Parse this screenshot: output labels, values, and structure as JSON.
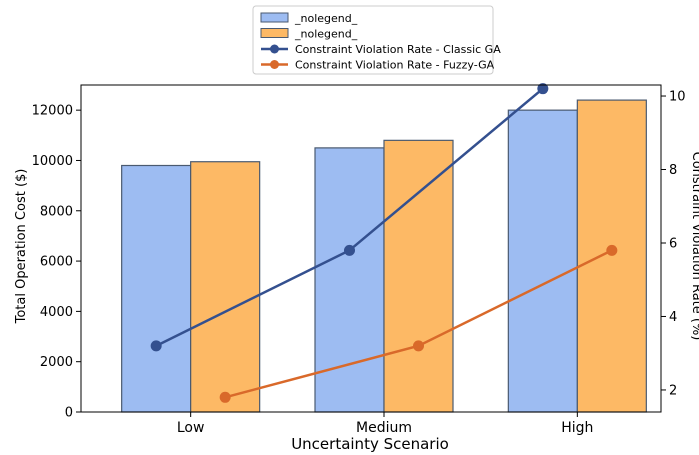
{
  "chart_data": {
    "type": "bar",
    "categories": [
      "Low",
      "Medium",
      "High"
    ],
    "xlabel": "Uncertainty Scenario",
    "ylabel": "Total Operation Cost ($)",
    "y2label": "Constraint Violation Rate (%)",
    "ylim": [
      0,
      13000
    ],
    "y2lim": [
      1.4,
      10.3
    ],
    "yticks": [
      0,
      2000,
      4000,
      6000,
      8000,
      10000,
      12000
    ],
    "y2ticks": [
      2,
      4,
      6,
      8,
      10
    ],
    "grid": false,
    "legend_position": "top-center",
    "bar_series": [
      {
        "name": "_nolegend_",
        "values": [
          9800,
          10500,
          12000
        ],
        "color": "#9dbcf2"
      },
      {
        "name": "_nolegend_",
        "values": [
          9950,
          10800,
          12400
        ],
        "color": "#fdb965"
      }
    ],
    "line_series": [
      {
        "name": "Constraint Violation Rate - Classic GA",
        "values": [
          3.2,
          5.8,
          10.2
        ],
        "color": "#34508f",
        "axis": "right"
      },
      {
        "name": "Constraint Violation Rate - Fuzzy-GA",
        "values": [
          1.8,
          3.2,
          5.8
        ],
        "color": "#d9692a",
        "axis": "right"
      }
    ]
  }
}
